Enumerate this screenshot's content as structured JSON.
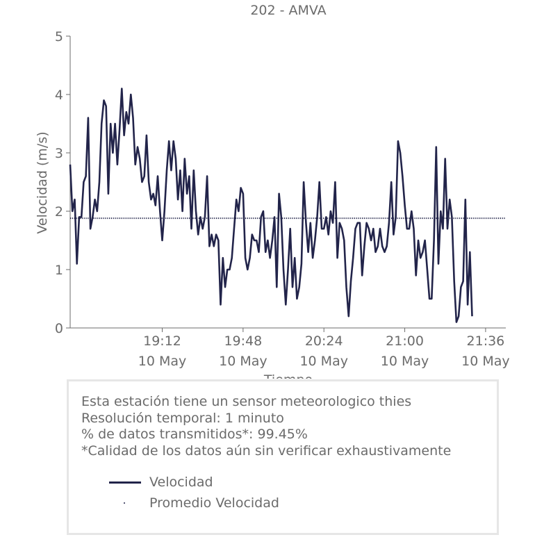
{
  "chart_data": {
    "type": "line",
    "title": "202 - AMVA",
    "xlabel": "Tiempo",
    "ylabel": "Velocidad (m/s)",
    "ylim": [
      0,
      5
    ],
    "yticks": [
      "0",
      "1",
      "2",
      "3",
      "4",
      "5"
    ],
    "xlim": [
      "2021-05-10 18:31",
      "2021-05-10 21:45"
    ],
    "xticks": [
      {
        "x": "2021-05-10 19:12",
        "time": "19:12",
        "date": "10 May"
      },
      {
        "x": "2021-05-10 19:48",
        "time": "19:48",
        "date": "10 May"
      },
      {
        "x": "2021-05-10 20:24",
        "time": "20:24",
        "date": "10 May"
      },
      {
        "x": "2021-05-10 21:00",
        "time": "21:00",
        "date": "10 May"
      },
      {
        "x": "2021-05-10 21:36",
        "time": "21:36",
        "date": "10 May"
      }
    ],
    "grid": false,
    "series": [
      {
        "name": "Velocidad",
        "color": "#22244a",
        "style": "solid",
        "x_start": "2021-05-10 18:31",
        "x_step_minutes": 1,
        "values": [
          2.8,
          2.0,
          2.2,
          1.1,
          1.9,
          1.9,
          2.5,
          2.6,
          3.6,
          1.7,
          1.9,
          2.2,
          2.0,
          2.5,
          3.5,
          3.9,
          3.8,
          2.3,
          3.5,
          3.0,
          3.5,
          2.8,
          3.4,
          4.1,
          3.3,
          3.7,
          3.5,
          4.0,
          3.6,
          2.8,
          3.1,
          2.9,
          2.5,
          2.6,
          3.3,
          2.5,
          2.2,
          2.3,
          2.1,
          2.6,
          2.0,
          1.5,
          2.0,
          2.7,
          3.2,
          2.7,
          3.2,
          2.9,
          2.2,
          2.7,
          2.0,
          2.9,
          2.3,
          2.6,
          1.7,
          2.7,
          2.0,
          1.6,
          1.9,
          1.7,
          1.9,
          2.6,
          1.4,
          1.6,
          1.4,
          1.6,
          1.5,
          0.4,
          1.2,
          0.7,
          1.0,
          1.0,
          1.2,
          1.7,
          2.2,
          2.0,
          2.4,
          2.3,
          1.2,
          1.0,
          1.2,
          1.6,
          1.5,
          1.5,
          1.3,
          1.9,
          2.0,
          1.3,
          1.5,
          1.2,
          1.5,
          1.9,
          0.7,
          2.3,
          1.9,
          1.0,
          0.4,
          1.0,
          1.7,
          0.7,
          1.2,
          0.5,
          0.7,
          1.1,
          2.5,
          1.8,
          1.3,
          1.8,
          1.2,
          1.5,
          1.9,
          2.5,
          1.7,
          1.7,
          1.9,
          1.6,
          2.0,
          1.8,
          2.5,
          1.2,
          1.8,
          1.7,
          1.5,
          0.7,
          0.2,
          0.8,
          1.2,
          1.7,
          1.8,
          1.8,
          0.9,
          1.4,
          1.8,
          1.7,
          1.5,
          1.7,
          1.3,
          1.4,
          1.7,
          1.4,
          1.3,
          1.4,
          1.8,
          2.5,
          1.6,
          1.9,
          3.2,
          3.0,
          2.6,
          2.1,
          1.7,
          1.7,
          2.0,
          1.7,
          0.9,
          1.5,
          1.2,
          1.3,
          1.5,
          1.0,
          0.5,
          0.5,
          1.5,
          3.1,
          1.1,
          2.0,
          1.7,
          2.9,
          1.7,
          2.2,
          1.9,
          0.8,
          0.1,
          0.2,
          0.7,
          0.8,
          2.2,
          0.4,
          1.3,
          0.2
        ]
      },
      {
        "name": "Promedio Velocidad",
        "color": "#22244a",
        "style": "dotted",
        "value": 1.88
      }
    ],
    "legend_position": "bottom"
  },
  "info": {
    "lines": [
      "Esta estación tiene un sensor meteorologico thies",
      "Resolución temporal: 1 minuto",
      "% de datos transmitidos*: 99.45%",
      "*Calidad de los datos aún sin verificar exhaustivamente"
    ]
  },
  "legend": {
    "items": [
      {
        "label": "Velocidad",
        "marker": "line"
      },
      {
        "label": "Promedio Velocidad",
        "marker": "dot"
      }
    ]
  },
  "colors": {
    "series": "#22244a",
    "text": "#6b6b6b",
    "axis": "#6b6b6b",
    "box_border": "#e6e6e6"
  }
}
